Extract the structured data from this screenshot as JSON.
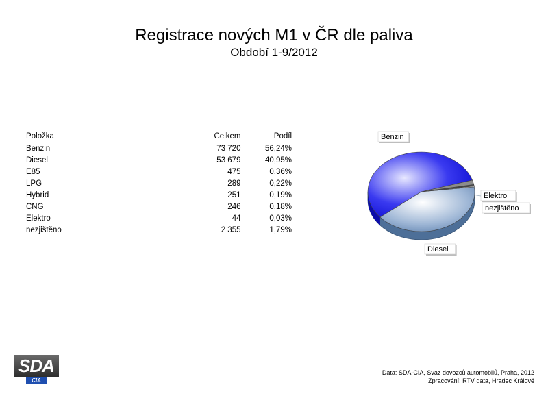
{
  "chart_data": {
    "type": "pie",
    "title": "Registrace nových M1 v ČR dle paliva",
    "subtitle": "Období 1-9/2012",
    "table": {
      "columns": [
        "Položka",
        "Celkem",
        "Podíl"
      ],
      "rows": [
        [
          "Benzin",
          "73 720",
          "56,24%"
        ],
        [
          "Diesel",
          "53 679",
          "40,95%"
        ],
        [
          "E85",
          "475",
          "0,36%"
        ],
        [
          "LPG",
          "289",
          "0,22%"
        ],
        [
          "Hybrid",
          "251",
          "0,19%"
        ],
        [
          "CNG",
          "246",
          "0,18%"
        ],
        [
          "Elektro",
          "44",
          "0,03%"
        ],
        [
          "nezjištěno",
          "2 355",
          "1,79%"
        ]
      ]
    },
    "slices": [
      {
        "label": "Benzin",
        "value": 73720,
        "color": "#1a1ae0"
      },
      {
        "label": "Diesel",
        "value": 53679,
        "color": "#6f93bf"
      },
      {
        "label": "E85",
        "value": 475,
        "color": "#c8c8c8"
      },
      {
        "label": "LPG",
        "value": 289,
        "color": "#b0b0b0"
      },
      {
        "label": "Hybrid",
        "value": 251,
        "color": "#e0e0e0"
      },
      {
        "label": "CNG",
        "value": 246,
        "color": "#9a9a9a"
      },
      {
        "label": "Elektro",
        "value": 44,
        "color": "#d6d6d6"
      },
      {
        "label": "nezjištěno",
        "value": 2355,
        "color": "#8c8c8c"
      }
    ],
    "callouts": [
      "Benzin",
      "Elektro",
      "nezjištěno",
      "Diesel"
    ]
  },
  "logo": {
    "main": "SDA",
    "sub": "CIA"
  },
  "source": {
    "line1": "Data: SDA-CIA, Svaz dovozců automobilů, Praha, 2012",
    "line2": "Zpracování: RTV data, Hradec Králové"
  }
}
